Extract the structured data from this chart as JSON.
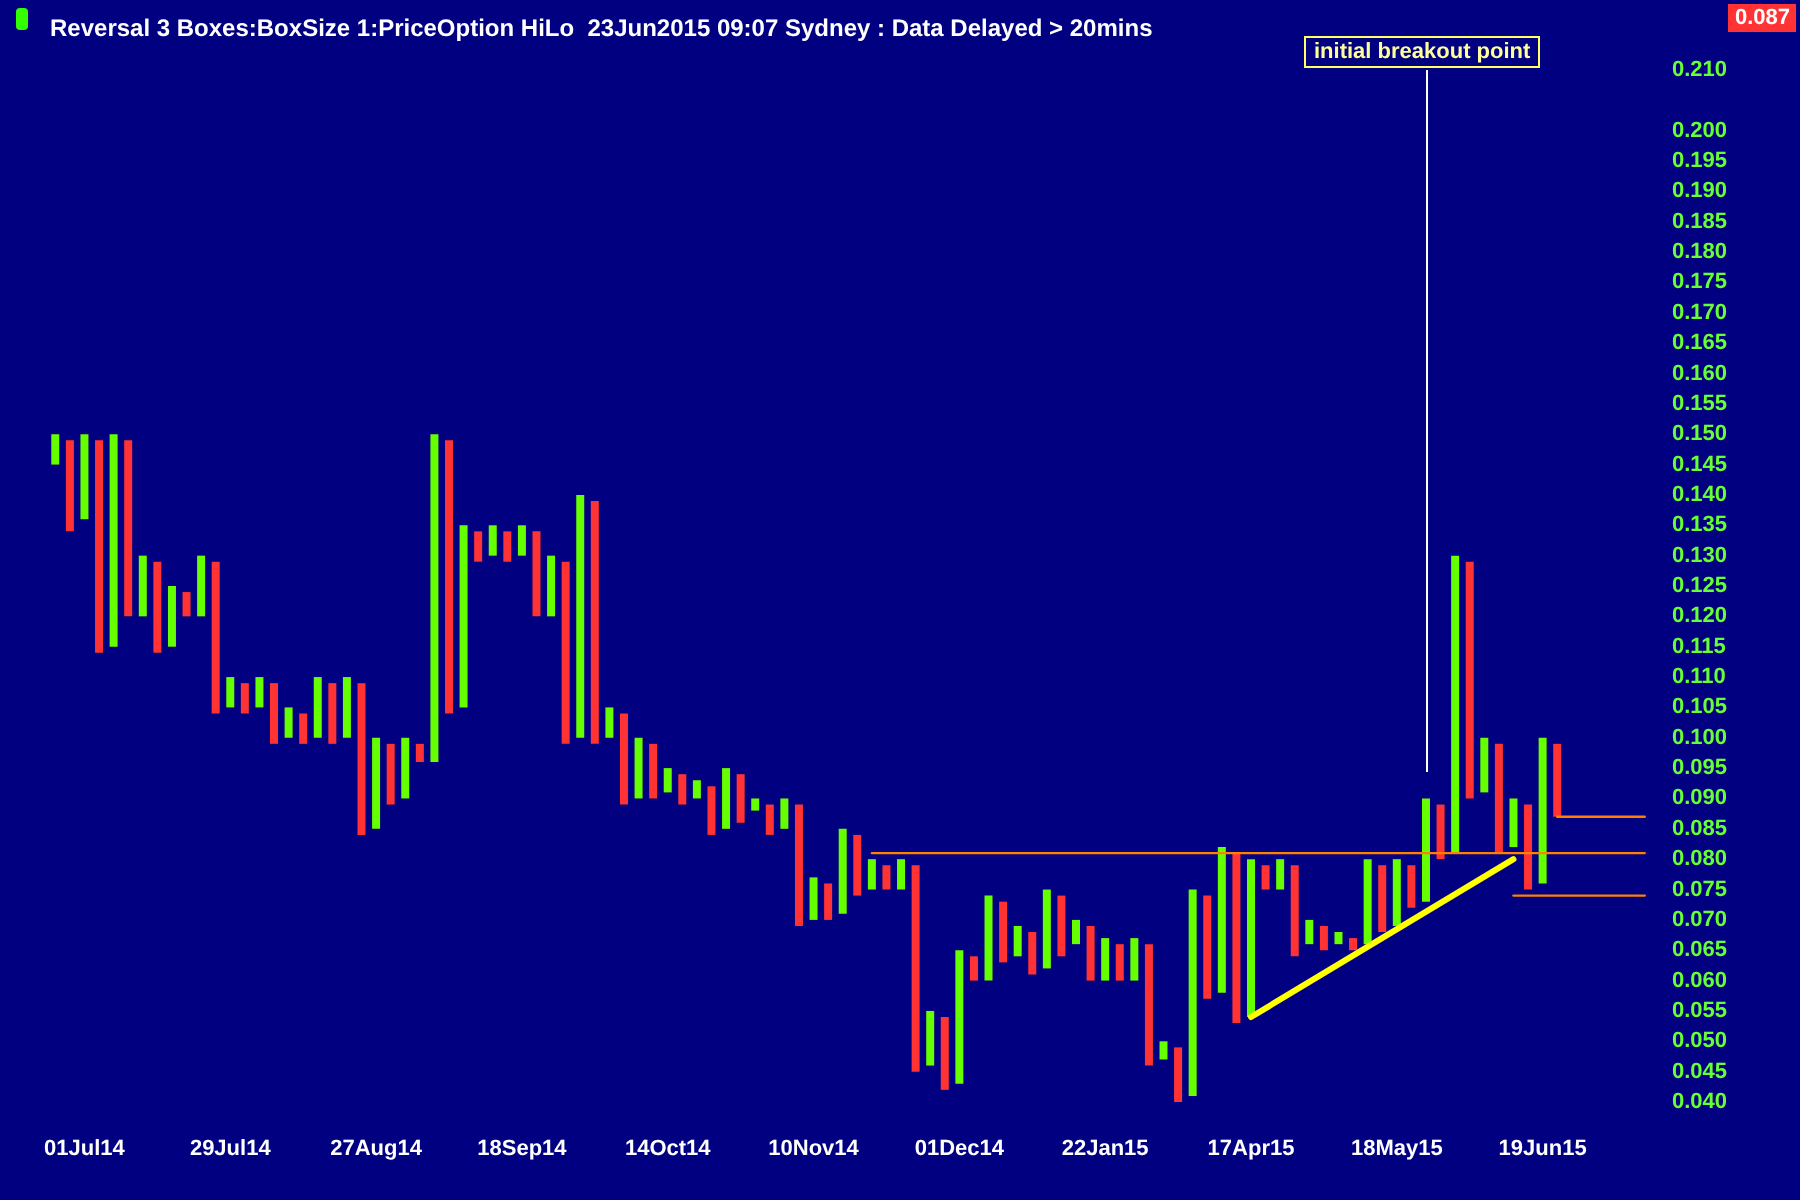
{
  "chart_data": {
    "type": "bar",
    "title": "Reversal 3 Boxes:BoxSize 1:PriceOption HiLo  23Jun2015 09:07 Sydney : Data Delayed > 20mins",
    "categories": [
      null,
      null,
      "01Jul14",
      null,
      null,
      null,
      null,
      null,
      null,
      null,
      null,
      null,
      "29Jul14",
      null,
      null,
      null,
      null,
      null,
      null,
      null,
      null,
      null,
      "27Aug14",
      null,
      null,
      null,
      null,
      null,
      null,
      null,
      null,
      null,
      "18Sep14",
      null,
      null,
      null,
      null,
      null,
      null,
      null,
      null,
      null,
      "14Oct14",
      null,
      null,
      null,
      null,
      null,
      null,
      null,
      null,
      null,
      "10Nov14",
      null,
      null,
      null,
      null,
      null,
      null,
      null,
      null,
      null,
      "01Dec14",
      null,
      null,
      null,
      null,
      null,
      null,
      null,
      null,
      null,
      "22Jan15",
      null,
      null,
      null,
      null,
      null,
      null,
      null,
      null,
      null,
      "17Apr15",
      null,
      null,
      null,
      null,
      null,
      null,
      null,
      null,
      null,
      "18May15",
      null,
      null,
      null,
      null,
      null,
      null,
      null,
      null,
      null,
      "19Jun15",
      null,
      null,
      null,
      null,
      null,
      null,
      null
    ],
    "series": [
      {
        "colors": [
          "#66ff00",
          "#ff3333",
          "#66ff00",
          "#ff3333",
          "#66ff00",
          "#ff3333",
          "#66ff00",
          "#ff3333",
          "#66ff00",
          "#ff3333",
          "#66ff00",
          "#ff3333",
          "#66ff00",
          "#ff3333",
          "#66ff00",
          "#ff3333",
          "#66ff00",
          "#ff3333",
          "#66ff00",
          "#ff3333",
          "#66ff00",
          "#ff3333",
          "#66ff00",
          "#ff3333",
          "#66ff00",
          "#ff3333",
          "#66ff00",
          "#ff3333",
          "#66ff00",
          "#ff3333",
          "#66ff00",
          "#ff3333",
          "#66ff00",
          "#ff3333",
          "#66ff00",
          "#ff3333",
          "#66ff00",
          "#ff3333",
          "#66ff00",
          "#ff3333",
          "#66ff00",
          "#ff3333",
          "#66ff00",
          "#ff3333",
          "#66ff00",
          "#ff3333",
          "#66ff00",
          "#ff3333",
          "#66ff00",
          "#ff3333",
          "#66ff00",
          "#ff3333",
          "#66ff00",
          "#ff3333",
          "#66ff00",
          "#ff3333",
          "#66ff00",
          "#ff3333",
          "#66ff00",
          "#ff3333",
          "#66ff00",
          "#ff3333",
          "#66ff00",
          "#ff3333",
          "#66ff00",
          "#ff3333",
          "#66ff00",
          "#ff3333",
          "#66ff00",
          "#ff3333",
          "#66ff00",
          "#ff3333",
          "#66ff00",
          "#ff3333",
          "#66ff00",
          "#ff3333",
          "#66ff00",
          "#ff3333",
          "#66ff00",
          "#ff3333",
          "#66ff00",
          "#ff3333",
          "#66ff00",
          "#ff3333",
          "#66ff00",
          "#ff3333",
          "#66ff00",
          "#ff3333",
          "#66ff00",
          "#ff3333",
          "#66ff00",
          "#ff3333",
          "#66ff00",
          "#ff3333",
          "#66ff00",
          "#ff3333",
          "#66ff00",
          "#ff3333",
          "#66ff00",
          "#ff3333",
          "#66ff00",
          "#ff3333",
          "#66ff00",
          "#ff3333",
          null,
          null,
          null,
          null,
          null,
          null
        ],
        "base": [
          0.145,
          0.134,
          0.136,
          0.114,
          0.115,
          0.12,
          0.12,
          0.114,
          0.115,
          0.12,
          0.12,
          0.104,
          0.105,
          0.104,
          0.105,
          0.099,
          0.1,
          0.099,
          0.1,
          0.099,
          0.1,
          0.084,
          0.085,
          0.089,
          0.09,
          0.096,
          0.096,
          0.104,
          0.105,
          0.129,
          0.13,
          0.129,
          0.13,
          0.12,
          0.12,
          0.099,
          0.1,
          0.099,
          0.1,
          0.089,
          0.09,
          0.09,
          0.091,
          0.089,
          0.09,
          0.084,
          0.085,
          0.086,
          0.088,
          0.084,
          0.085,
          0.069,
          0.07,
          0.07,
          0.071,
          0.074,
          0.075,
          0.075,
          0.075,
          0.045,
          0.046,
          0.042,
          0.043,
          0.06,
          0.06,
          0.063,
          0.064,
          0.061,
          0.062,
          0.064,
          0.066,
          0.06,
          0.06,
          0.06,
          0.06,
          0.046,
          0.047,
          0.04,
          0.041,
          0.057,
          0.058,
          0.053,
          0.054,
          0.075,
          0.075,
          0.064,
          0.066,
          0.065,
          0.066,
          0.065,
          0.066,
          0.068,
          0.069,
          0.072,
          0.073,
          0.08,
          0.081,
          0.09,
          0.091,
          0.081,
          0.082,
          0.075,
          0.076,
          0.087,
          null,
          null,
          null,
          null,
          null,
          null
        ],
        "values": [
          0.005,
          0.015,
          0.014,
          0.035,
          0.035,
          0.029,
          0.01,
          0.015,
          0.01,
          0.004,
          0.01,
          0.025,
          0.005,
          0.005,
          0.005,
          0.01,
          0.005,
          0.005,
          0.01,
          0.01,
          0.01,
          0.025,
          0.015,
          0.01,
          0.01,
          0.003,
          0.054,
          0.045,
          0.03,
          0.005,
          0.005,
          0.005,
          0.005,
          0.014,
          0.01,
          0.03,
          0.04,
          0.04,
          0.005,
          0.015,
          0.01,
          0.009,
          0.004,
          0.005,
          0.003,
          0.008,
          0.01,
          0.008,
          0.002,
          0.005,
          0.005,
          0.02,
          0.007,
          0.006,
          0.014,
          0.01,
          0.005,
          0.004,
          0.005,
          0.034,
          0.009,
          0.012,
          0.022,
          0.004,
          0.014,
          0.01,
          0.005,
          0.007,
          0.013,
          0.01,
          0.004,
          0.009,
          0.007,
          0.006,
          0.007,
          0.02,
          0.003,
          0.009,
          0.034,
          0.017,
          0.024,
          0.028,
          0.026,
          0.004,
          0.005,
          0.015,
          0.004,
          0.004,
          0.002,
          0.002,
          0.014,
          0.011,
          0.011,
          0.007,
          0.017,
          0.009,
          0.049,
          0.039,
          0.009,
          0.018,
          0.008,
          0.014,
          0.024,
          0.012,
          null,
          null,
          null,
          null,
          null,
          null
        ]
      },
      {
        "type": "line",
        "color": "#ffff00",
        "values": [
          null,
          null,
          null,
          null,
          null,
          null,
          null,
          null,
          null,
          null,
          null,
          null,
          null,
          null,
          null,
          null,
          null,
          null,
          null,
          null,
          null,
          null,
          null,
          null,
          null,
          null,
          null,
          null,
          null,
          null,
          null,
          null,
          null,
          null,
          null,
          null,
          null,
          null,
          null,
          null,
          null,
          null,
          null,
          null,
          null,
          null,
          null,
          null,
          null,
          null,
          null,
          null,
          null,
          null,
          null,
          null,
          null,
          null,
          null,
          null,
          null,
          null,
          null,
          null,
          null,
          null,
          null,
          null,
          null,
          null,
          null,
          null,
          null,
          null,
          null,
          null,
          null,
          null,
          null,
          null,
          null,
          null,
          0.054,
          null,
          null,
          null,
          null,
          null,
          null,
          null,
          null,
          null,
          null,
          null,
          null,
          null,
          null,
          null,
          null,
          null,
          0.08,
          null,
          null,
          null,
          null,
          null,
          null,
          null,
          null,
          null
        ]
      },
      {
        "type": "line",
        "color": "#ff8000",
        "values": [
          null,
          null,
          null,
          null,
          null,
          null,
          null,
          null,
          null,
          null,
          null,
          null,
          null,
          null,
          null,
          null,
          null,
          null,
          null,
          null,
          null,
          null,
          null,
          null,
          null,
          null,
          null,
          null,
          null,
          null,
          null,
          null,
          null,
          null,
          null,
          null,
          null,
          null,
          null,
          null,
          null,
          null,
          null,
          null,
          null,
          null,
          null,
          null,
          null,
          null,
          null,
          null,
          null,
          null,
          null,
          null,
          0.081,
          null,
          null,
          null,
          null,
          null,
          null,
          null,
          null,
          null,
          null,
          null,
          null,
          null,
          null,
          null,
          null,
          null,
          null,
          null,
          null,
          null,
          null,
          null,
          null,
          null,
          null,
          null,
          null,
          null,
          null,
          null,
          null,
          null,
          null,
          null,
          null,
          null,
          null,
          null,
          null,
          null,
          null,
          null,
          null,
          null,
          null,
          null,
          null,
          null,
          null,
          null,
          null,
          0.081
        ]
      },
      {
        "type": "line",
        "color": "#ff8000",
        "values": [
          null,
          null,
          null,
          null,
          null,
          null,
          null,
          null,
          null,
          null,
          null,
          null,
          null,
          null,
          null,
          null,
          null,
          null,
          null,
          null,
          null,
          null,
          null,
          null,
          null,
          null,
          null,
          null,
          null,
          null,
          null,
          null,
          null,
          null,
          null,
          null,
          null,
          null,
          null,
          null,
          null,
          null,
          null,
          null,
          null,
          null,
          null,
          null,
          null,
          null,
          null,
          null,
          null,
          null,
          null,
          null,
          null,
          null,
          null,
          null,
          null,
          null,
          null,
          null,
          null,
          null,
          null,
          null,
          null,
          null,
          null,
          null,
          null,
          null,
          null,
          null,
          null,
          null,
          null,
          null,
          null,
          null,
          null,
          null,
          null,
          null,
          null,
          null,
          null,
          null,
          null,
          null,
          null,
          null,
          null,
          null,
          null,
          null,
          null,
          null,
          null,
          null,
          null,
          0.087,
          null,
          null,
          null,
          null,
          null,
          0.087
        ]
      },
      {
        "type": "line",
        "color": "#ff8000",
        "values": [
          null,
          null,
          null,
          null,
          null,
          null,
          null,
          null,
          null,
          null,
          null,
          null,
          null,
          null,
          null,
          null,
          null,
          null,
          null,
          null,
          null,
          null,
          null,
          null,
          null,
          null,
          null,
          null,
          null,
          null,
          null,
          null,
          null,
          null,
          null,
          null,
          null,
          null,
          null,
          null,
          null,
          null,
          null,
          null,
          null,
          null,
          null,
          null,
          null,
          null,
          null,
          null,
          null,
          null,
          null,
          null,
          null,
          null,
          null,
          null,
          null,
          null,
          null,
          null,
          null,
          null,
          null,
          null,
          null,
          null,
          null,
          null,
          null,
          null,
          null,
          null,
          null,
          null,
          null,
          null,
          null,
          null,
          null,
          null,
          null,
          null,
          null,
          null,
          null,
          null,
          null,
          null,
          null,
          null,
          null,
          null,
          null,
          null,
          null,
          null,
          0.074,
          null,
          null,
          null,
          null,
          null,
          null,
          null,
          null,
          0.074
        ]
      }
    ],
    "ylim": [
      0.04,
      0.21
    ],
    "yticks": [
      {
        "value": 0.04,
        "label": "0.040"
      },
      {
        "value": 0.045,
        "label": "0.045"
      },
      {
        "value": 0.05,
        "label": "0.050"
      },
      {
        "value": 0.055,
        "label": "0.055"
      },
      {
        "value": 0.06,
        "label": "0.060"
      },
      {
        "value": 0.065,
        "label": "0.065"
      },
      {
        "value": 0.07,
        "label": "0.070"
      },
      {
        "value": 0.075,
        "label": "0.075"
      },
      {
        "value": 0.08,
        "label": "0.080"
      },
      {
        "value": 0.085,
        "label": "0.085"
      },
      {
        "value": 0.09,
        "label": "0.090"
      },
      {
        "value": 0.095,
        "label": "0.095"
      },
      {
        "value": 0.1,
        "label": "0.100"
      },
      {
        "value": 0.105,
        "label": "0.105"
      },
      {
        "value": 0.11,
        "label": "0.110"
      },
      {
        "value": 0.115,
        "label": "0.115"
      },
      {
        "value": 0.12,
        "label": "0.120"
      },
      {
        "value": 0.125,
        "label": "0.125"
      },
      {
        "value": 0.13,
        "label": "0.130"
      },
      {
        "value": 0.135,
        "label": "0.135"
      },
      {
        "value": 0.14,
        "label": "0.140"
      },
      {
        "value": 0.145,
        "label": "0.145"
      },
      {
        "value": 0.15,
        "label": "0.150"
      },
      {
        "value": 0.155,
        "label": "0.155"
      },
      {
        "value": 0.16,
        "label": "0.160"
      },
      {
        "value": 0.165,
        "label": "0.165"
      },
      {
        "value": 0.17,
        "label": "0.170"
      },
      {
        "value": 0.175,
        "label": "0.175"
      },
      {
        "value": 0.18,
        "label": "0.180"
      },
      {
        "value": 0.185,
        "label": "0.185"
      },
      {
        "value": 0.19,
        "label": "0.190"
      },
      {
        "value": 0.195,
        "label": "0.195"
      },
      {
        "value": 0.2,
        "label": "0.200"
      },
      {
        "value": 0.21,
        "label": "0.210"
      }
    ],
    "annotations": [
      "initial breakout point",
      "0.087"
    ],
    "marker": "none",
    "grid": false
  }
}
